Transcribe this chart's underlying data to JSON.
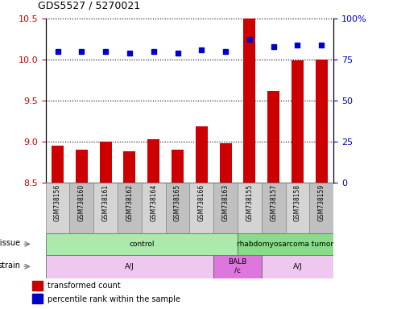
{
  "title": "GDS5527 / 5270021",
  "samples": [
    "GSM738156",
    "GSM738160",
    "GSM738161",
    "GSM738162",
    "GSM738164",
    "GSM738165",
    "GSM738166",
    "GSM738163",
    "GSM738155",
    "GSM738157",
    "GSM738158",
    "GSM738159"
  ],
  "bar_values": [
    8.95,
    8.9,
    9.0,
    8.88,
    9.03,
    8.9,
    9.18,
    8.98,
    10.5,
    9.62,
    9.99,
    10.0
  ],
  "dot_values": [
    80,
    80,
    80,
    79,
    80,
    79,
    81,
    80,
    87,
    83,
    84,
    84
  ],
  "ylim_left": [
    8.5,
    10.5
  ],
  "ylim_right": [
    0,
    100
  ],
  "yticks_left": [
    8.5,
    9.0,
    9.5,
    10.0,
    10.5
  ],
  "yticks_right": [
    0,
    25,
    50,
    75,
    100
  ],
  "bar_color": "#cc0000",
  "dot_color": "#0000cc",
  "bg_color": "#ffffff",
  "tissue_groups": [
    {
      "label": "control",
      "start": 0,
      "end": 8,
      "color": "#aaeaaa"
    },
    {
      "label": "rhabdomyosarcoma tumor",
      "start": 8,
      "end": 12,
      "color": "#88dd88"
    }
  ],
  "strain_groups": [
    {
      "label": "A/J",
      "start": 0,
      "end": 7,
      "color": "#eec8ee"
    },
    {
      "label": "BALB\n/c",
      "start": 7,
      "end": 9,
      "color": "#dd77dd"
    },
    {
      "label": "A/J",
      "start": 9,
      "end": 12,
      "color": "#eec8ee"
    }
  ],
  "sample_cell_colors": [
    "#d4d4d4",
    "#c0c0c0",
    "#d4d4d4",
    "#c0c0c0",
    "#d4d4d4",
    "#c0c0c0",
    "#d4d4d4",
    "#c0c0c0",
    "#d4d4d4",
    "#c0c0c0",
    "#d4d4d4",
    "#c0c0c0"
  ],
  "grid_linestyle": "dotted",
  "left_label_color": "#808080",
  "arrow_color": "#808080"
}
